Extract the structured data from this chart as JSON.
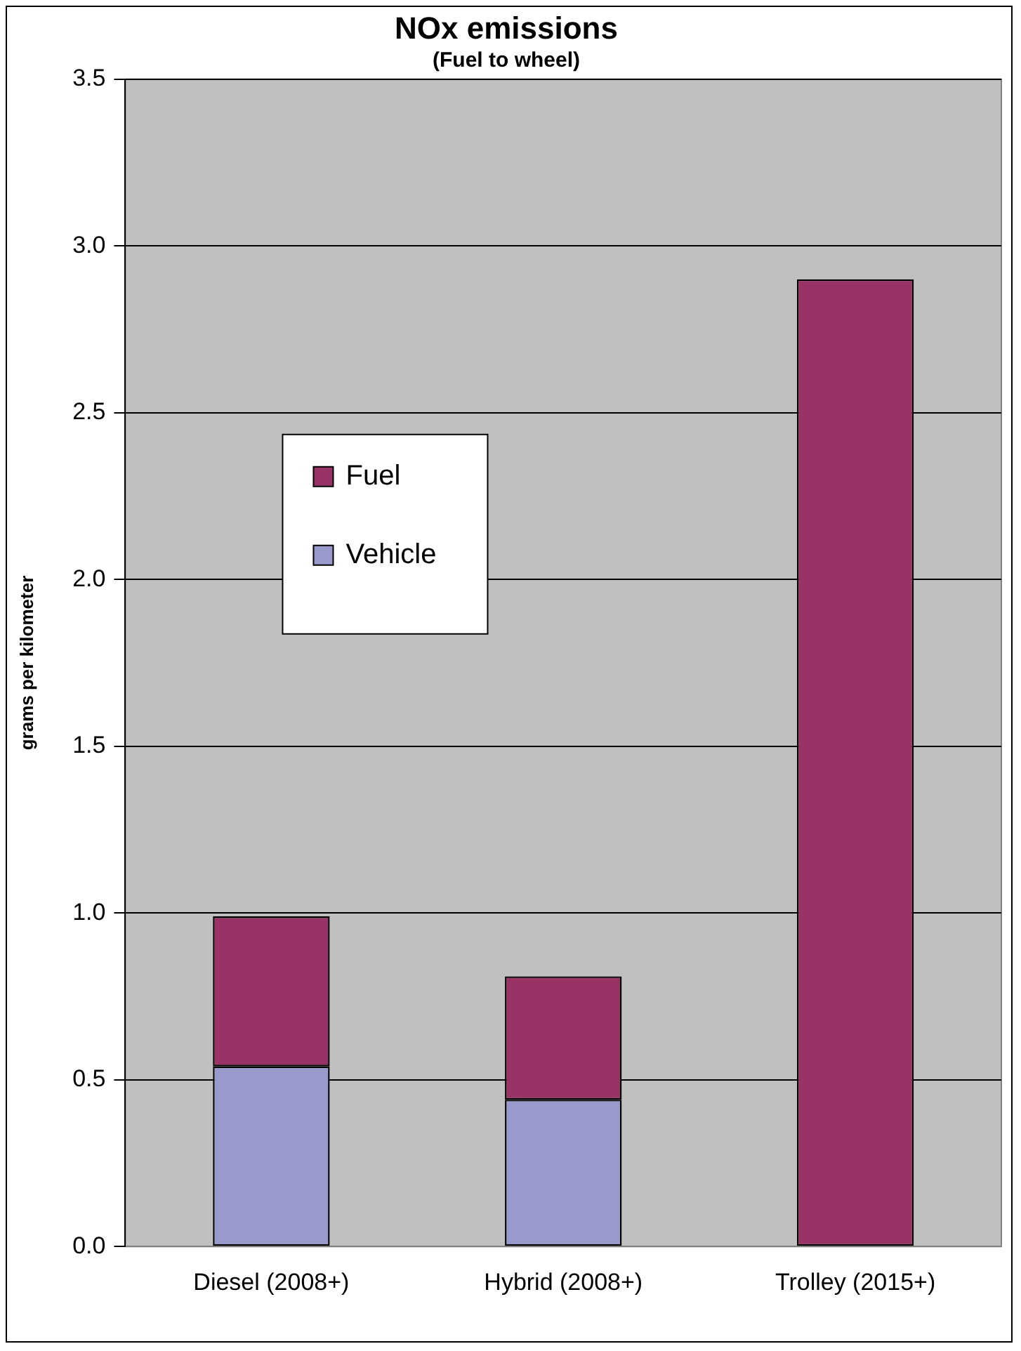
{
  "chart_data": {
    "type": "bar",
    "title": "NOx emissions",
    "subtitle": "(Fuel to wheel)",
    "ylabel": "grams per kilometer",
    "categories": [
      "Diesel (2008+)",
      "Hybrid (2008+)",
      "Trolley (2015+)"
    ],
    "series": [
      {
        "name": "Vehicle",
        "color": "#9999cc",
        "values": [
          0.54,
          0.44,
          0
        ]
      },
      {
        "name": "Fuel",
        "color": "#993366",
        "values": [
          0.45,
          0.37,
          2.9
        ]
      }
    ],
    "stacked": true,
    "ylim": [
      0,
      3.5
    ],
    "yticks": [
      {
        "value": 0,
        "label": "0.0"
      },
      0.5,
      {
        "value": 1,
        "label": "1.0"
      },
      1.5,
      {
        "value": 2,
        "label": "2.0"
      },
      2.5,
      {
        "value": 3,
        "label": "3.0"
      },
      3.5
    ],
    "grid": "y",
    "legend": "left"
  }
}
